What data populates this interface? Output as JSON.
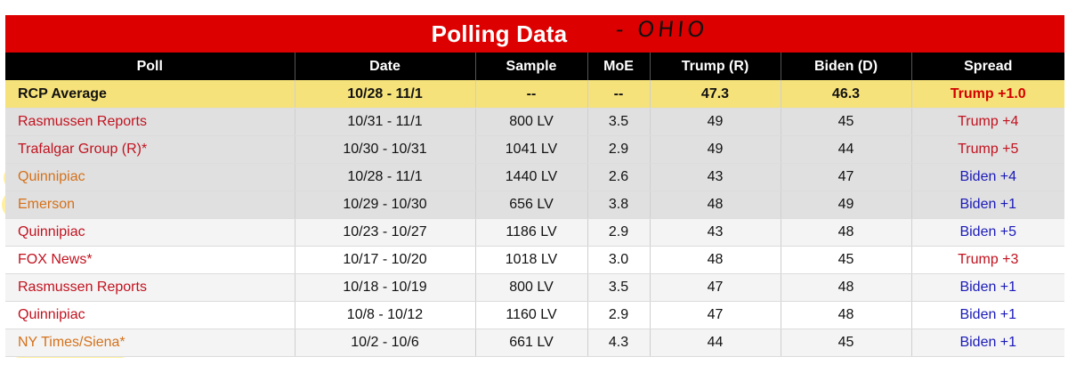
{
  "title": "Polling Data",
  "handwritten_note": "- OHIO",
  "columns": [
    "Poll",
    "Date",
    "Sample",
    "MoE",
    "Trump (R)",
    "Biden (D)",
    "Spread"
  ],
  "average": {
    "poll": "RCP Average",
    "date": "10/28 - 11/1",
    "sample": "--",
    "moe": "--",
    "trump": "47.3",
    "biden": "46.3",
    "spread": "Trump +1.0"
  },
  "rows": [
    {
      "poll": "Rasmussen Reports",
      "date": "10/31 - 11/1",
      "sample": "800 LV",
      "moe": "3.5",
      "trump": "49",
      "biden": "45",
      "spread": "Trump +4"
    },
    {
      "poll": "Trafalgar Group (R)*",
      "date": "10/30 - 10/31",
      "sample": "1041 LV",
      "moe": "2.9",
      "trump": "49",
      "biden": "44",
      "spread": "Trump +5"
    },
    {
      "poll": "Quinnipiac",
      "date": "10/28 - 11/1",
      "sample": "1440 LV",
      "moe": "2.6",
      "trump": "43",
      "biden": "47",
      "spread": "Biden +4"
    },
    {
      "poll": "Emerson",
      "date": "10/29 - 10/30",
      "sample": "656 LV",
      "moe": "3.8",
      "trump": "48",
      "biden": "49",
      "spread": "Biden +1"
    },
    {
      "poll": "Quinnipiac",
      "date": "10/23 - 10/27",
      "sample": "1186 LV",
      "moe": "2.9",
      "trump": "43",
      "biden": "48",
      "spread": "Biden +5"
    },
    {
      "poll": "FOX News*",
      "date": "10/17 - 10/20",
      "sample": "1018 LV",
      "moe": "3.0",
      "trump": "48",
      "biden": "45",
      "spread": "Trump +3"
    },
    {
      "poll": "Rasmussen Reports",
      "date": "10/18 - 10/19",
      "sample": "800 LV",
      "moe": "3.5",
      "trump": "47",
      "biden": "48",
      "spread": "Biden +1"
    },
    {
      "poll": "Quinnipiac",
      "date": "10/8 - 10/12",
      "sample": "1160 LV",
      "moe": "2.9",
      "trump": "47",
      "biden": "48",
      "spread": "Biden +1"
    },
    {
      "poll": "NY Times/Siena*",
      "date": "10/2 - 10/6",
      "sample": "661 LV",
      "moe": "4.3",
      "trump": "44",
      "biden": "45",
      "spread": "Biden +1"
    }
  ],
  "colors": {
    "title_bg": "#dd0000",
    "header_bg": "#000000",
    "average_bg": "#f6e27a",
    "trump": "#c1121f",
    "biden": "#1a1ab8",
    "highlighter": "#ffdc28"
  }
}
